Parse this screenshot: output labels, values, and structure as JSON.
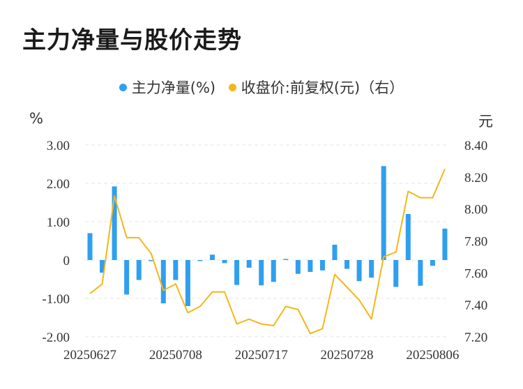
{
  "title": "主力净量与股价走势",
  "legend": {
    "bar_label": "主力净量(%)",
    "line_label": "收盘价:前复权(元)（右）"
  },
  "left_unit": "%",
  "right_unit": "元",
  "colors": {
    "bar": "#2f9ff0",
    "line": "#f5b617",
    "grid": "#e6e6e6"
  },
  "chart_data": {
    "type": "bar",
    "x_tick_labels": [
      "20250627",
      "20250708",
      "20250717",
      "20250728",
      "20250806"
    ],
    "left_axis": {
      "ticks": [
        "3.00",
        "2.00",
        "1.00",
        "0",
        "-1.00",
        "-2.00"
      ],
      "min": -2,
      "max": 3
    },
    "right_axis": {
      "ticks": [
        "8.40",
        "8.20",
        "8.00",
        "7.80",
        "7.60",
        "7.40",
        "7.20"
      ],
      "min": 7.2,
      "max": 8.4
    },
    "tick_positions": [
      0,
      7,
      14,
      21,
      28
    ],
    "series": [
      {
        "name": "主力净量(%)",
        "type": "bar",
        "values": [
          0.7,
          -0.33,
          1.92,
          -0.9,
          -0.52,
          -0.02,
          -1.13,
          -0.52,
          -1.2,
          -0.02,
          0.14,
          -0.08,
          -0.65,
          -0.2,
          -0.66,
          -0.57,
          0.02,
          -0.36,
          -0.31,
          -0.27,
          0.4,
          -0.23,
          -0.55,
          -0.46,
          2.45,
          -0.7,
          1.2,
          -0.67,
          -0.15,
          0.82
        ]
      },
      {
        "name": "收盘价:前复权(元)（右）",
        "type": "line",
        "values": [
          7.47,
          7.53,
          8.08,
          7.82,
          7.82,
          7.72,
          7.49,
          7.53,
          7.35,
          7.39,
          7.48,
          7.48,
          7.28,
          7.31,
          7.28,
          7.27,
          7.39,
          7.37,
          7.22,
          7.25,
          7.59,
          7.51,
          7.43,
          7.31,
          7.7,
          7.73,
          8.11,
          8.07,
          8.07,
          8.25
        ]
      }
    ]
  }
}
